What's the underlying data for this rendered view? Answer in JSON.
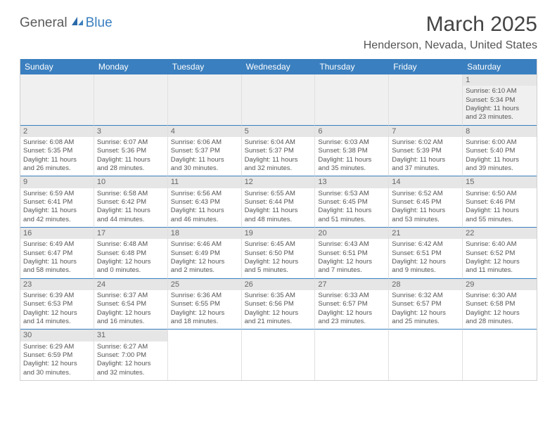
{
  "logo": {
    "part1": "General",
    "part2": "Blue"
  },
  "title": "March 2025",
  "location": "Henderson, Nevada, United States",
  "daysOfWeek": [
    "Sunday",
    "Monday",
    "Tuesday",
    "Wednesday",
    "Thursday",
    "Friday",
    "Saturday"
  ],
  "colors": {
    "headerBlue": "#3a7fbf",
    "logoGray": "#5a5a5a",
    "cellBorder": "#3a7fbf"
  },
  "cells": [
    {
      "blank": true
    },
    {
      "blank": true
    },
    {
      "blank": true
    },
    {
      "blank": true
    },
    {
      "blank": true
    },
    {
      "blank": true
    },
    {
      "day": "1",
      "sunrise": "Sunrise: 6:10 AM",
      "sunset": "Sunset: 5:34 PM",
      "daylight1": "Daylight: 11 hours",
      "daylight2": "and 23 minutes."
    },
    {
      "day": "2",
      "sunrise": "Sunrise: 6:08 AM",
      "sunset": "Sunset: 5:35 PM",
      "daylight1": "Daylight: 11 hours",
      "daylight2": "and 26 minutes."
    },
    {
      "day": "3",
      "sunrise": "Sunrise: 6:07 AM",
      "sunset": "Sunset: 5:36 PM",
      "daylight1": "Daylight: 11 hours",
      "daylight2": "and 28 minutes."
    },
    {
      "day": "4",
      "sunrise": "Sunrise: 6:06 AM",
      "sunset": "Sunset: 5:37 PM",
      "daylight1": "Daylight: 11 hours",
      "daylight2": "and 30 minutes."
    },
    {
      "day": "5",
      "sunrise": "Sunrise: 6:04 AM",
      "sunset": "Sunset: 5:37 PM",
      "daylight1": "Daylight: 11 hours",
      "daylight2": "and 32 minutes."
    },
    {
      "day": "6",
      "sunrise": "Sunrise: 6:03 AM",
      "sunset": "Sunset: 5:38 PM",
      "daylight1": "Daylight: 11 hours",
      "daylight2": "and 35 minutes."
    },
    {
      "day": "7",
      "sunrise": "Sunrise: 6:02 AM",
      "sunset": "Sunset: 5:39 PM",
      "daylight1": "Daylight: 11 hours",
      "daylight2": "and 37 minutes."
    },
    {
      "day": "8",
      "sunrise": "Sunrise: 6:00 AM",
      "sunset": "Sunset: 5:40 PM",
      "daylight1": "Daylight: 11 hours",
      "daylight2": "and 39 minutes."
    },
    {
      "day": "9",
      "sunrise": "Sunrise: 6:59 AM",
      "sunset": "Sunset: 6:41 PM",
      "daylight1": "Daylight: 11 hours",
      "daylight2": "and 42 minutes."
    },
    {
      "day": "10",
      "sunrise": "Sunrise: 6:58 AM",
      "sunset": "Sunset: 6:42 PM",
      "daylight1": "Daylight: 11 hours",
      "daylight2": "and 44 minutes."
    },
    {
      "day": "11",
      "sunrise": "Sunrise: 6:56 AM",
      "sunset": "Sunset: 6:43 PM",
      "daylight1": "Daylight: 11 hours",
      "daylight2": "and 46 minutes."
    },
    {
      "day": "12",
      "sunrise": "Sunrise: 6:55 AM",
      "sunset": "Sunset: 6:44 PM",
      "daylight1": "Daylight: 11 hours",
      "daylight2": "and 48 minutes."
    },
    {
      "day": "13",
      "sunrise": "Sunrise: 6:53 AM",
      "sunset": "Sunset: 6:45 PM",
      "daylight1": "Daylight: 11 hours",
      "daylight2": "and 51 minutes."
    },
    {
      "day": "14",
      "sunrise": "Sunrise: 6:52 AM",
      "sunset": "Sunset: 6:45 PM",
      "daylight1": "Daylight: 11 hours",
      "daylight2": "and 53 minutes."
    },
    {
      "day": "15",
      "sunrise": "Sunrise: 6:50 AM",
      "sunset": "Sunset: 6:46 PM",
      "daylight1": "Daylight: 11 hours",
      "daylight2": "and 55 minutes."
    },
    {
      "day": "16",
      "sunrise": "Sunrise: 6:49 AM",
      "sunset": "Sunset: 6:47 PM",
      "daylight1": "Daylight: 11 hours",
      "daylight2": "and 58 minutes."
    },
    {
      "day": "17",
      "sunrise": "Sunrise: 6:48 AM",
      "sunset": "Sunset: 6:48 PM",
      "daylight1": "Daylight: 12 hours",
      "daylight2": "and 0 minutes."
    },
    {
      "day": "18",
      "sunrise": "Sunrise: 6:46 AM",
      "sunset": "Sunset: 6:49 PM",
      "daylight1": "Daylight: 12 hours",
      "daylight2": "and 2 minutes."
    },
    {
      "day": "19",
      "sunrise": "Sunrise: 6:45 AM",
      "sunset": "Sunset: 6:50 PM",
      "daylight1": "Daylight: 12 hours",
      "daylight2": "and 5 minutes."
    },
    {
      "day": "20",
      "sunrise": "Sunrise: 6:43 AM",
      "sunset": "Sunset: 6:51 PM",
      "daylight1": "Daylight: 12 hours",
      "daylight2": "and 7 minutes."
    },
    {
      "day": "21",
      "sunrise": "Sunrise: 6:42 AM",
      "sunset": "Sunset: 6:51 PM",
      "daylight1": "Daylight: 12 hours",
      "daylight2": "and 9 minutes."
    },
    {
      "day": "22",
      "sunrise": "Sunrise: 6:40 AM",
      "sunset": "Sunset: 6:52 PM",
      "daylight1": "Daylight: 12 hours",
      "daylight2": "and 11 minutes."
    },
    {
      "day": "23",
      "sunrise": "Sunrise: 6:39 AM",
      "sunset": "Sunset: 6:53 PM",
      "daylight1": "Daylight: 12 hours",
      "daylight2": "and 14 minutes."
    },
    {
      "day": "24",
      "sunrise": "Sunrise: 6:37 AM",
      "sunset": "Sunset: 6:54 PM",
      "daylight1": "Daylight: 12 hours",
      "daylight2": "and 16 minutes."
    },
    {
      "day": "25",
      "sunrise": "Sunrise: 6:36 AM",
      "sunset": "Sunset: 6:55 PM",
      "daylight1": "Daylight: 12 hours",
      "daylight2": "and 18 minutes."
    },
    {
      "day": "26",
      "sunrise": "Sunrise: 6:35 AM",
      "sunset": "Sunset: 6:56 PM",
      "daylight1": "Daylight: 12 hours",
      "daylight2": "and 21 minutes."
    },
    {
      "day": "27",
      "sunrise": "Sunrise: 6:33 AM",
      "sunset": "Sunset: 6:57 PM",
      "daylight1": "Daylight: 12 hours",
      "daylight2": "and 23 minutes."
    },
    {
      "day": "28",
      "sunrise": "Sunrise: 6:32 AM",
      "sunset": "Sunset: 6:57 PM",
      "daylight1": "Daylight: 12 hours",
      "daylight2": "and 25 minutes."
    },
    {
      "day": "29",
      "sunrise": "Sunrise: 6:30 AM",
      "sunset": "Sunset: 6:58 PM",
      "daylight1": "Daylight: 12 hours",
      "daylight2": "and 28 minutes."
    },
    {
      "day": "30",
      "sunrise": "Sunrise: 6:29 AM",
      "sunset": "Sunset: 6:59 PM",
      "daylight1": "Daylight: 12 hours",
      "daylight2": "and 30 minutes."
    },
    {
      "day": "31",
      "sunrise": "Sunrise: 6:27 AM",
      "sunset": "Sunset: 7:00 PM",
      "daylight1": "Daylight: 12 hours",
      "daylight2": "and 32 minutes."
    },
    {
      "blank": true
    },
    {
      "blank": true
    },
    {
      "blank": true
    },
    {
      "blank": true
    },
    {
      "blank": true
    }
  ]
}
